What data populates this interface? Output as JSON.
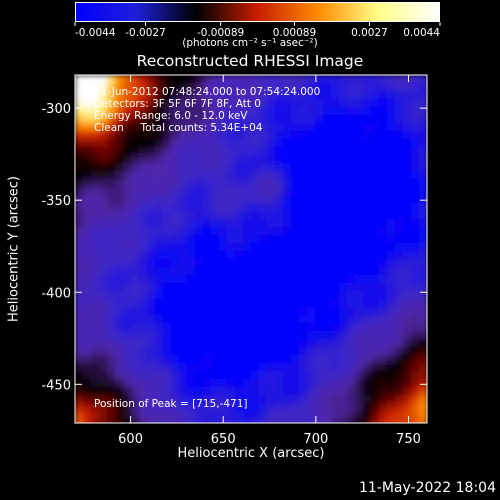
{
  "colorbar": {
    "ticks": [
      "-0.0044",
      "-0.0027",
      "-0.00089",
      "0.00089",
      "0.0027",
      "0.0044"
    ],
    "ticks_values": [
      -0.0044,
      -0.0027,
      -0.00089,
      0.00089,
      0.0027,
      0.0044
    ],
    "units": "(photons cm⁻² s⁻¹ asec⁻²)",
    "min": -0.0044,
    "max": 0.0044,
    "colors": [
      "#0000ff",
      "#2020d8",
      "#000000",
      "#c81e00",
      "#ff8c00",
      "#ffff8a",
      "#ffffff"
    ]
  },
  "chart_data": {
    "type": "heatmap",
    "title": "Reconstructed RHESSI Image",
    "xlabel": "Heliocentric X (arcsec)",
    "ylabel": "Heliocentric Y (arcsec)",
    "xlim": [
      570,
      760
    ],
    "ylim": [
      -471,
      -282
    ],
    "xticks": [
      600,
      650,
      700,
      750
    ],
    "yticks": [
      -300,
      -350,
      -400,
      -450
    ],
    "grid": false,
    "info_lines": [
      "11-Jun-2012 07:48:24.000 to 07:54:24.000",
      "Detectors: 3F 5F 6F 7F 8F, Att 0",
      "Energy Range: 6.0 - 12.0 keV",
      "Clean     Total counts: 5.34E+04"
    ],
    "peak_label": "Position of Peak = [715,-471]",
    "peak_position": [
      715,
      -471
    ]
  },
  "footer": {
    "timestamp": "11-May-2022 18:04"
  }
}
